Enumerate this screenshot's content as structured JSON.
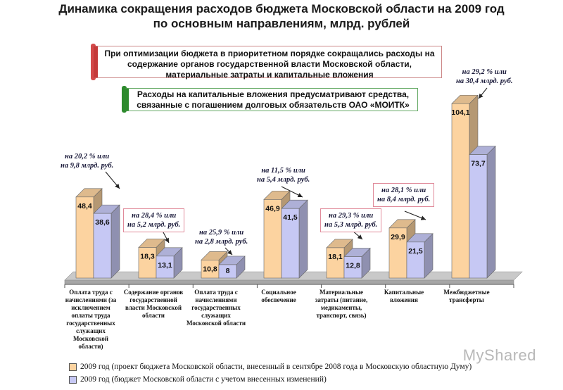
{
  "title_line1": "Динамика сокращения расходов бюджета Московской области на 2009 год",
  "title_line2": "по основным направлениям, млрд. рублей",
  "notes": [
    "При оптимизации бюджета в приоритетном порядке сокращались расходы на содержание органов государственной власти Московской области, материальные затраты и капитальные вложения",
    "Расходы на капитальные вложения предусматривают средства, связанные с погашением долговых обязательств ОАО «МОИТК»"
  ],
  "watermark": "MyShared",
  "colors": {
    "series1": "#fcd3a0",
    "series2": "#c6c8f4",
    "floor": "#bdbdbd",
    "accent": "#c53a3a"
  },
  "chart_data": {
    "type": "bar",
    "title": "Динамика сокращения расходов бюджета Московской области на 2009 год по основным направлениям, млрд. рублей",
    "categories": [
      "Оплата труда с начислениями (за исключением оплаты труда государственных служащих Московской области)",
      "Содержание органов государственной власти Московской области",
      "Оплата труда с начислениями государственных служащих Московской области",
      "Социальное обеспечение",
      "Материальные затраты (питание, медикаменты, транспорт, связь)",
      "Капитальные вложения",
      "Межбюджетные трансферты"
    ],
    "series": [
      {
        "name": "2009 год (проект бюджета Московской области, внесенный в сентябре 2008 года в Московскую областную Думу)",
        "values": [
          48.4,
          18.3,
          10.8,
          46.9,
          18.1,
          29.9,
          104.1
        ],
        "labels": [
          "48,4",
          "18,3",
          "10,8",
          "46,9",
          "18,1",
          "29,9",
          "104,1"
        ]
      },
      {
        "name": "2009 год (бюджет Московской области с учетом внесенных изменений)",
        "values": [
          38.6,
          13.1,
          8,
          41.5,
          12.8,
          21.5,
          73.7
        ],
        "labels": [
          "38,6",
          "13,1",
          "8",
          "41,5",
          "12,8",
          "21,5",
          "73,7"
        ]
      }
    ],
    "annotations": [
      {
        "line1": "на 20,2 % или",
        "line2": "на 9,8 млрд. руб."
      },
      {
        "line1": "на 28,4 % или",
        "line2": "на 5,2 млрд. руб."
      },
      {
        "line1": "на 25,9 % или",
        "line2": "на 2,8 млрд. руб."
      },
      {
        "line1": "на 11,5 % или",
        "line2": "на 5,4 млрд. руб."
      },
      {
        "line1": "на 29,3 % или",
        "line2": "на 5,3 млрд. руб."
      },
      {
        "line1": "на 28,1 % или",
        "line2": "на 8,4 млрд. руб."
      },
      {
        "line1": "на 29,2 % или",
        "line2": "на 30,4 млрд. руб."
      }
    ],
    "legend_position": "bottom",
    "grid": false
  }
}
